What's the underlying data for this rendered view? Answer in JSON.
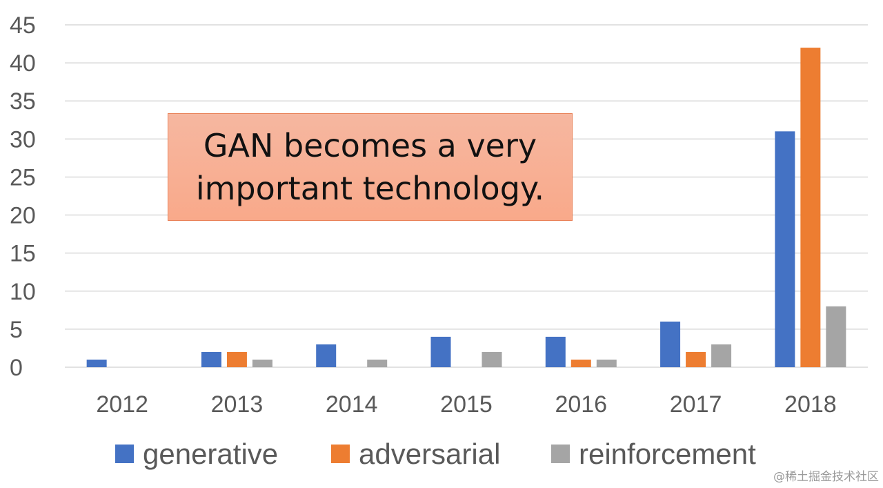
{
  "chart_data": {
    "type": "bar",
    "categories": [
      "2012",
      "2013",
      "2014",
      "2015",
      "2016",
      "2017",
      "2018"
    ],
    "series": [
      {
        "name": "generative",
        "color": "#4472c4",
        "values": [
          1,
          2,
          3,
          4,
          4,
          6,
          31
        ]
      },
      {
        "name": "adversarial",
        "color": "#ed7d31",
        "values": [
          0,
          2,
          0,
          0,
          1,
          2,
          42
        ]
      },
      {
        "name": "reinforcement",
        "color": "#a5a5a5",
        "values": [
          0,
          1,
          1,
          2,
          1,
          3,
          8
        ]
      }
    ],
    "yticks": [
      "0",
      "5",
      "10",
      "15",
      "20",
      "25",
      "30",
      "35",
      "40",
      "45"
    ],
    "ylim": [
      0,
      45
    ],
    "grid": true,
    "legend_position": "bottom",
    "annotation": "GAN becomes a very important technology."
  },
  "watermark": "@稀土掘金技术社区"
}
